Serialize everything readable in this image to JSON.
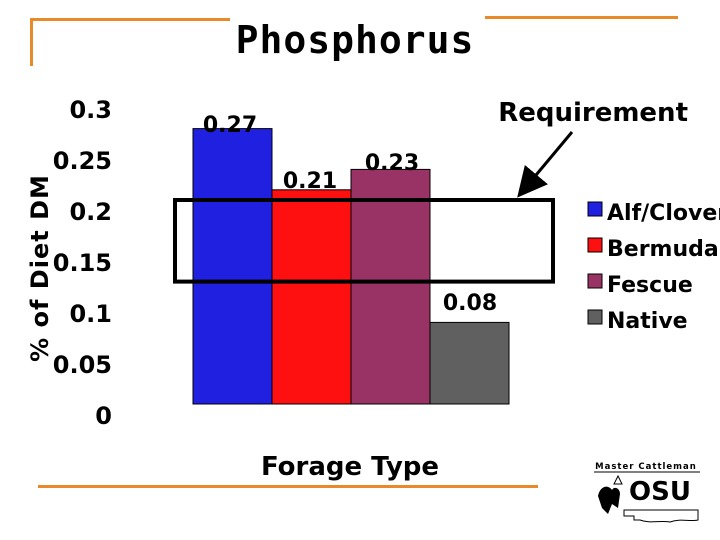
{
  "slide": {
    "title": "Phosphorus",
    "accent_color": "#e8892a"
  },
  "chart_data": {
    "type": "bar",
    "title": "",
    "xlabel": "Forage Type",
    "ylabel": "% of Diet DM",
    "ylim": [
      0,
      0.3
    ],
    "yticks": [
      "0.3",
      "0.25",
      "0.2",
      "0.15",
      "0.1",
      "0.05",
      "0"
    ],
    "grid": false,
    "legend_position": "right",
    "series": [
      {
        "name": "Alf/Clover",
        "value": 0.27,
        "label": "0.27",
        "color": "#2020e0"
      },
      {
        "name": "Bermuda",
        "value": 0.21,
        "label": "0.21",
        "color": "#ff1010"
      },
      {
        "name": "Fescue",
        "value": 0.23,
        "label": "0.23",
        "color": "#993366"
      },
      {
        "name": "Native",
        "value": 0.08,
        "label": "0.08",
        "color": "#606060"
      }
    ],
    "requirement_band": [
      0.12,
      0.2
    ],
    "annotation": "Requirement"
  },
  "logo": {
    "text": "Master Cattleman",
    "name": "OSU"
  }
}
